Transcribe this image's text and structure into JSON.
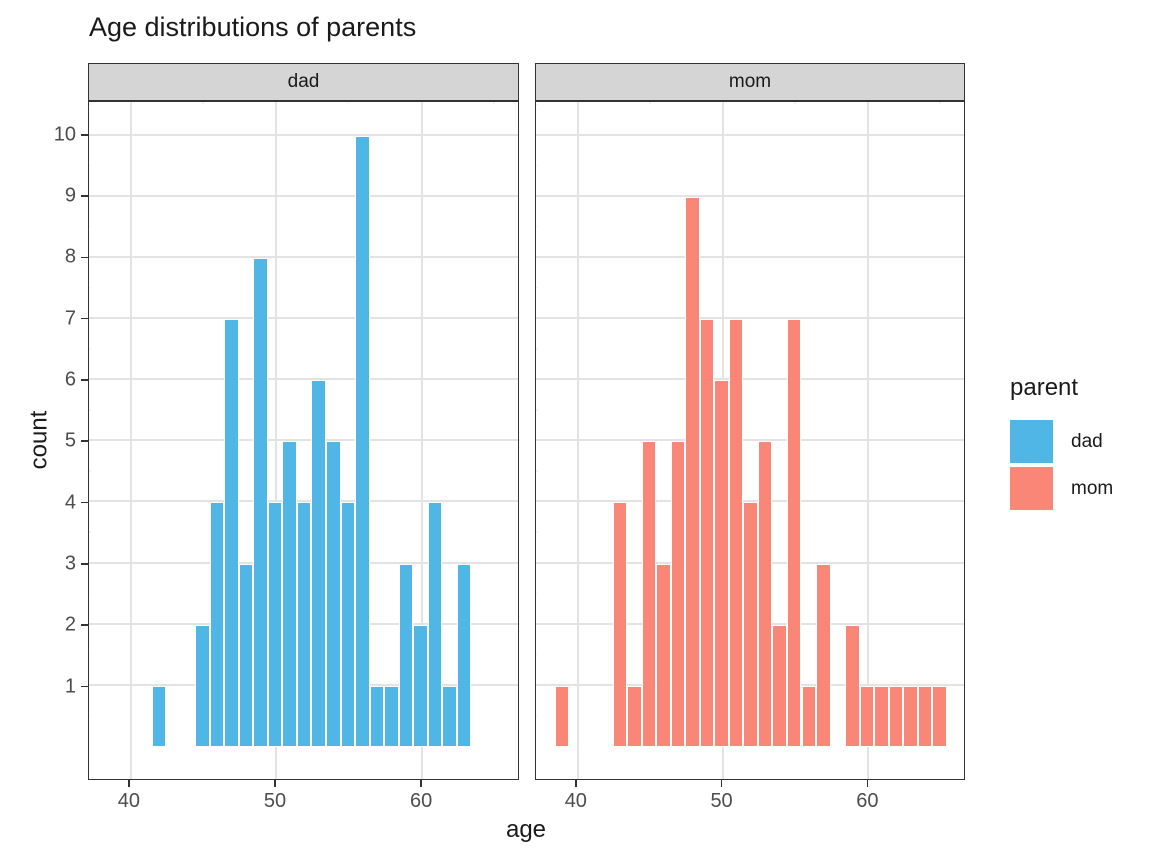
{
  "legend": {
    "title": "parent",
    "items": [
      {
        "label": "dad",
        "color": "#4FB6E5"
      },
      {
        "label": "mom",
        "color": "#FA8678"
      }
    ]
  },
  "chart_data": {
    "type": "bar",
    "subtype": "faceted-histogram",
    "title": "Age distributions of parents",
    "xlabel": "age",
    "ylabel": "count",
    "binwidth": 1,
    "xlim": [
      37.2,
      66.7
    ],
    "ylim": [
      0,
      10.55
    ],
    "x_ticks": [
      40,
      50,
      60
    ],
    "y_ticks": [
      1,
      2,
      3,
      4,
      5,
      6,
      7,
      8,
      9,
      10
    ],
    "x_minor_gridlines": [
      45,
      55,
      65
    ],
    "grid": "major+minor",
    "legend_position": "right",
    "facets": [
      {
        "name": "dad",
        "color": "#4FB6E5",
        "bins": [
          {
            "age": 42,
            "count": 1
          },
          {
            "age": 45,
            "count": 2
          },
          {
            "age": 46,
            "count": 4
          },
          {
            "age": 47,
            "count": 7
          },
          {
            "age": 48,
            "count": 3
          },
          {
            "age": 49,
            "count": 8
          },
          {
            "age": 50,
            "count": 4
          },
          {
            "age": 51,
            "count": 5
          },
          {
            "age": 52,
            "count": 4
          },
          {
            "age": 53,
            "count": 6
          },
          {
            "age": 54,
            "count": 5
          },
          {
            "age": 55,
            "count": 4
          },
          {
            "age": 56,
            "count": 10
          },
          {
            "age": 57,
            "count": 1
          },
          {
            "age": 58,
            "count": 1
          },
          {
            "age": 59,
            "count": 3
          },
          {
            "age": 60,
            "count": 2
          },
          {
            "age": 61,
            "count": 4
          },
          {
            "age": 62,
            "count": 1
          },
          {
            "age": 63,
            "count": 3
          }
        ]
      },
      {
        "name": "mom",
        "color": "#FA8678",
        "bins": [
          {
            "age": 39,
            "count": 1
          },
          {
            "age": 43,
            "count": 4
          },
          {
            "age": 44,
            "count": 1
          },
          {
            "age": 45,
            "count": 5
          },
          {
            "age": 46,
            "count": 3
          },
          {
            "age": 47,
            "count": 5
          },
          {
            "age": 48,
            "count": 9
          },
          {
            "age": 49,
            "count": 7
          },
          {
            "age": 50,
            "count": 6
          },
          {
            "age": 51,
            "count": 7
          },
          {
            "age": 52,
            "count": 4
          },
          {
            "age": 53,
            "count": 5
          },
          {
            "age": 54,
            "count": 2
          },
          {
            "age": 55,
            "count": 7
          },
          {
            "age": 56,
            "count": 1
          },
          {
            "age": 57,
            "count": 3
          },
          {
            "age": 59,
            "count": 2
          },
          {
            "age": 60,
            "count": 1
          },
          {
            "age": 61,
            "count": 1
          },
          {
            "age": 62,
            "count": 1
          },
          {
            "age": 63,
            "count": 1
          },
          {
            "age": 64,
            "count": 1
          },
          {
            "age": 65,
            "count": 1
          }
        ]
      }
    ]
  }
}
